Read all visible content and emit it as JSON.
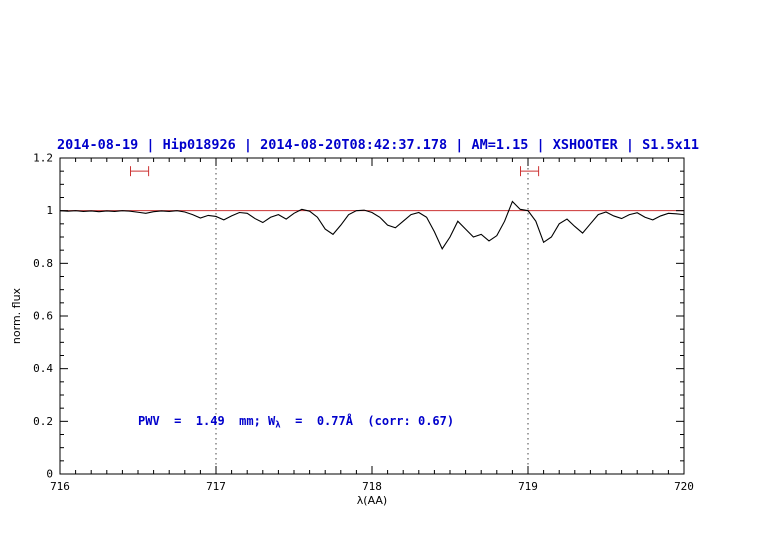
{
  "title": "2014-08-19 | Hip018926 | 2014-08-20T08:42:37.178 | AM=1.15 | XSHOOTER | S1.5x11",
  "annotation": {
    "full": "PWV  =  1.49  mm; Wλ  =  0.77Å  (corr: 0.67)",
    "part1": "PWV  =  1.49  mm; W",
    "sub": "λ",
    "part3": "  =  0.77Å  (corr: 0.67)"
  },
  "colors": {
    "title": "#0000cc",
    "annotation": "#0000cc",
    "spectrum": "#000000",
    "reference_line": "#cc3333",
    "marker": "#cc3333",
    "dotted_line": "#444444",
    "frame": "#000000"
  },
  "chart_data": {
    "type": "line",
    "title": "2014-08-19 | Hip018926 | 2014-08-20T08:42:37.178 | AM=1.15 | XSHOOTER | S1.5x11",
    "xlabel": "λ(AA)",
    "ylabel": "norm. flux",
    "xlim": [
      716,
      720
    ],
    "ylim": [
      0,
      1.2
    ],
    "xticks": [
      716,
      717,
      718,
      719,
      720
    ],
    "xtick_labels": [
      "716",
      "717",
      "718",
      "719",
      "720"
    ],
    "xtick_minor": 0.1,
    "yticks": [
      0,
      0.2,
      0.4,
      0.6,
      0.8,
      1,
      1.2
    ],
    "ytick_labels": [
      "0",
      "0.2",
      "0.4",
      "0.6",
      "0.8",
      "1",
      "1.2"
    ],
    "ytick_minor": 0.05,
    "grid": "off",
    "legend": "none",
    "vlines": [
      717,
      719
    ],
    "reference_line": 1.0,
    "markers": [
      {
        "x": 716.51,
        "half_width": 0.058,
        "y": 1.15
      },
      {
        "x": 719.01,
        "half_width": 0.058,
        "y": 1.15
      }
    ],
    "series": [
      {
        "name": "spectrum",
        "x": [
          716.0,
          716.05,
          716.1,
          716.15,
          716.2,
          716.25,
          716.3,
          716.35,
          716.4,
          716.45,
          716.5,
          716.55,
          716.6,
          716.65,
          716.7,
          716.75,
          716.8,
          716.85,
          716.9,
          716.95,
          717.0,
          717.05,
          717.1,
          717.15,
          717.2,
          717.25,
          717.3,
          717.35,
          717.4,
          717.45,
          717.5,
          717.55,
          717.6,
          717.65,
          717.7,
          717.75,
          717.8,
          717.85,
          717.9,
          717.95,
          718.0,
          718.05,
          718.1,
          718.15,
          718.2,
          718.25,
          718.3,
          718.35,
          718.4,
          718.45,
          718.5,
          718.55,
          718.6,
          718.65,
          718.7,
          718.75,
          718.8,
          718.85,
          718.9,
          718.95,
          719.0,
          719.05,
          719.1,
          719.15,
          719.2,
          719.25,
          719.3,
          719.35,
          719.4,
          719.45,
          719.5,
          719.55,
          719.6,
          719.65,
          719.7,
          719.75,
          719.8,
          719.85,
          719.9,
          719.95,
          720.0
        ],
        "y": [
          1.0,
          0.998,
          1.0,
          0.997,
          0.999,
          0.996,
          0.999,
          0.997,
          1.0,
          0.998,
          0.994,
          0.99,
          0.996,
          0.999,
          0.997,
          1.0,
          0.995,
          0.985,
          0.972,
          0.982,
          0.978,
          0.965,
          0.98,
          0.993,
          0.99,
          0.97,
          0.955,
          0.975,
          0.985,
          0.968,
          0.99,
          1.005,
          0.998,
          0.975,
          0.93,
          0.91,
          0.945,
          0.985,
          1.0,
          1.002,
          0.993,
          0.975,
          0.945,
          0.935,
          0.96,
          0.985,
          0.993,
          0.975,
          0.92,
          0.855,
          0.9,
          0.96,
          0.93,
          0.9,
          0.91,
          0.885,
          0.905,
          0.96,
          1.035,
          1.005,
          1.0,
          0.96,
          0.88,
          0.9,
          0.95,
          0.968,
          0.94,
          0.915,
          0.95,
          0.985,
          0.995,
          0.98,
          0.97,
          0.985,
          0.992,
          0.975,
          0.965,
          0.98,
          0.99,
          0.988,
          0.985
        ]
      }
    ]
  }
}
